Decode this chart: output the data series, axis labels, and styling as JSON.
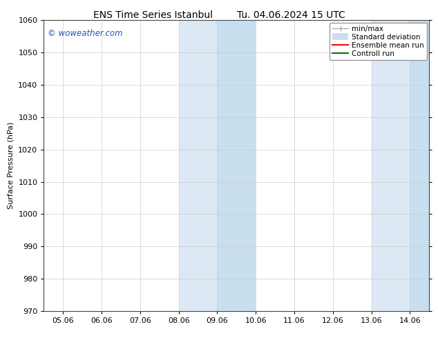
{
  "title_left": "ENS Time Series Istanbul",
  "title_right": "Tu. 04.06.2024 15 UTC",
  "ylabel": "Surface Pressure (hPa)",
  "ylim": [
    970,
    1060
  ],
  "yticks": [
    970,
    980,
    990,
    1000,
    1010,
    1020,
    1030,
    1040,
    1050,
    1060
  ],
  "x_labels": [
    "05.06",
    "06.06",
    "07.06",
    "08.06",
    "09.06",
    "10.06",
    "11.06",
    "12.06",
    "13.06",
    "14.06"
  ],
  "x_values": [
    0,
    1,
    2,
    3,
    4,
    5,
    6,
    7,
    8,
    9
  ],
  "shaded_regions": [
    {
      "xmin": 3.0,
      "xmax": 4.0,
      "color": "#dce9f5"
    },
    {
      "xmin": 4.0,
      "xmax": 5.0,
      "color": "#c8dff0"
    },
    {
      "xmin": 8.0,
      "xmax": 9.0,
      "color": "#dce9f5"
    },
    {
      "xmin": 9.0,
      "xmax": 9.5,
      "color": "#c8dff0"
    }
  ],
  "background_color": "#ffffff",
  "grid_color": "#cccccc",
  "watermark_text": "© woweather.com",
  "watermark_color": "#2255bb",
  "font_family": "DejaVu Sans",
  "title_fontsize": 10,
  "axis_fontsize": 8,
  "tick_fontsize": 8,
  "legend_fontsize": 7.5
}
